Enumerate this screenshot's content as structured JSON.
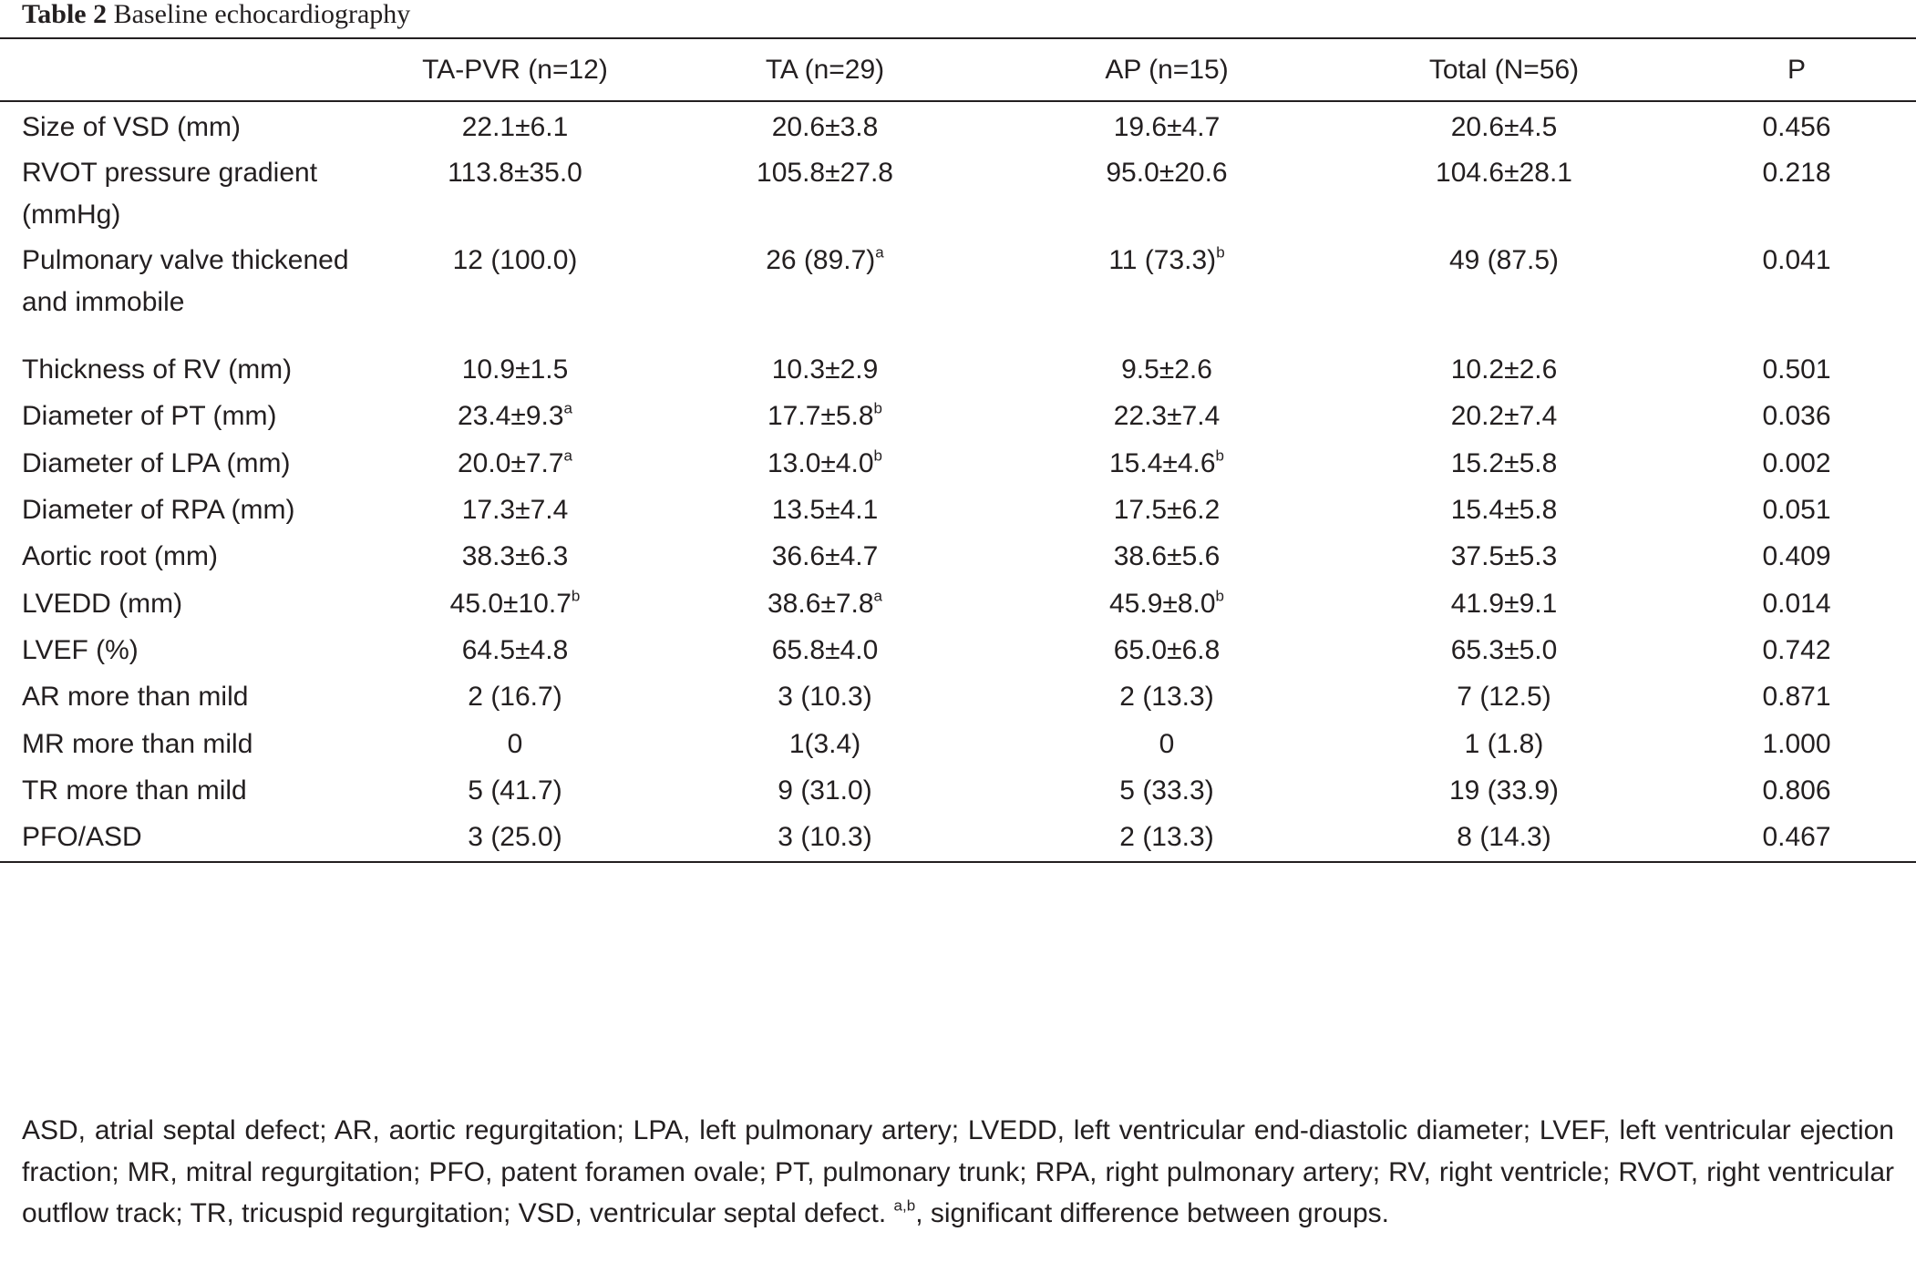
{
  "caption": {
    "label": "Table 2",
    "title": "Baseline echocardiography"
  },
  "columns": [
    "",
    "TA-PVR (n=12)",
    "TA (n=29)",
    "AP (n=15)",
    "Total (N=56)",
    "P"
  ],
  "rows": [
    {
      "label": "Size of VSD (mm)",
      "cells": [
        {
          "v": "22.1±6.1",
          "s": ""
        },
        {
          "v": "20.6±3.8",
          "s": ""
        },
        {
          "v": "19.6±4.7",
          "s": ""
        },
        {
          "v": "20.6±4.5",
          "s": ""
        },
        {
          "v": "0.456",
          "s": ""
        }
      ]
    },
    {
      "label": "RVOT pressure gradient (mmHg)",
      "cells": [
        {
          "v": "113.8±35.0",
          "s": ""
        },
        {
          "v": "105.8±27.8",
          "s": ""
        },
        {
          "v": "95.0±20.6",
          "s": ""
        },
        {
          "v": "104.6±28.1",
          "s": ""
        },
        {
          "v": "0.218",
          "s": ""
        }
      ]
    },
    {
      "label": "Pulmonary valve thickened and immobile",
      "cells": [
        {
          "v": "12 (100.0)",
          "s": ""
        },
        {
          "v": "26 (89.7)",
          "s": "a"
        },
        {
          "v": "11 (73.3)",
          "s": "b"
        },
        {
          "v": "49 (87.5)",
          "s": ""
        },
        {
          "v": "0.041",
          "s": ""
        }
      ]
    },
    {
      "label": "Thickness of RV (mm)",
      "cells": [
        {
          "v": "10.9±1.5",
          "s": ""
        },
        {
          "v": "10.3±2.9",
          "s": ""
        },
        {
          "v": "9.5±2.6",
          "s": ""
        },
        {
          "v": "10.2±2.6",
          "s": ""
        },
        {
          "v": "0.501",
          "s": ""
        }
      ]
    },
    {
      "label": "Diameter of PT (mm)",
      "cells": [
        {
          "v": "23.4±9.3",
          "s": "a"
        },
        {
          "v": "17.7±5.8",
          "s": "b"
        },
        {
          "v": "22.3±7.4",
          "s": ""
        },
        {
          "v": "20.2±7.4",
          "s": ""
        },
        {
          "v": "0.036",
          "s": ""
        }
      ]
    },
    {
      "label": "Diameter of LPA (mm)",
      "cells": [
        {
          "v": "20.0±7.7",
          "s": "a"
        },
        {
          "v": "13.0±4.0",
          "s": "b"
        },
        {
          "v": "15.4±4.6",
          "s": "b"
        },
        {
          "v": "15.2±5.8",
          "s": ""
        },
        {
          "v": "0.002",
          "s": ""
        }
      ]
    },
    {
      "label": "Diameter of RPA (mm)",
      "cells": [
        {
          "v": "17.3±7.4",
          "s": ""
        },
        {
          "v": "13.5±4.1",
          "s": ""
        },
        {
          "v": "17.5±6.2",
          "s": ""
        },
        {
          "v": "15.4±5.8",
          "s": ""
        },
        {
          "v": "0.051",
          "s": ""
        }
      ]
    },
    {
      "label": "Aortic root (mm)",
      "cells": [
        {
          "v": "38.3±6.3",
          "s": ""
        },
        {
          "v": "36.6±4.7",
          "s": ""
        },
        {
          "v": "38.6±5.6",
          "s": ""
        },
        {
          "v": "37.5±5.3",
          "s": ""
        },
        {
          "v": "0.409",
          "s": ""
        }
      ]
    },
    {
      "label": "LVEDD (mm)",
      "cells": [
        {
          "v": "45.0±10.7",
          "s": "b"
        },
        {
          "v": "38.6±7.8",
          "s": "a"
        },
        {
          "v": "45.9±8.0",
          "s": "b"
        },
        {
          "v": "41.9±9.1",
          "s": ""
        },
        {
          "v": "0.014",
          "s": ""
        }
      ]
    },
    {
      "label": "LVEF (%)",
      "cells": [
        {
          "v": "64.5±4.8",
          "s": ""
        },
        {
          "v": "65.8±4.0",
          "s": ""
        },
        {
          "v": "65.0±6.8",
          "s": ""
        },
        {
          "v": "65.3±5.0",
          "s": ""
        },
        {
          "v": "0.742",
          "s": ""
        }
      ]
    },
    {
      "label": "AR more than mild",
      "cells": [
        {
          "v": "2 (16.7)",
          "s": ""
        },
        {
          "v": "3 (10.3)",
          "s": ""
        },
        {
          "v": "2 (13.3)",
          "s": ""
        },
        {
          "v": "7 (12.5)",
          "s": ""
        },
        {
          "v": "0.871",
          "s": ""
        }
      ]
    },
    {
      "label": "MR more than mild",
      "cells": [
        {
          "v": "0",
          "s": ""
        },
        {
          "v": "1(3.4)",
          "s": ""
        },
        {
          "v": "0",
          "s": ""
        },
        {
          "v": "1 (1.8)",
          "s": ""
        },
        {
          "v": "1.000",
          "s": ""
        }
      ]
    },
    {
      "label": "TR more than mild",
      "cells": [
        {
          "v": "5 (41.7)",
          "s": ""
        },
        {
          "v": "9 (31.0)",
          "s": ""
        },
        {
          "v": "5 (33.3)",
          "s": ""
        },
        {
          "v": "19 (33.9)",
          "s": ""
        },
        {
          "v": "0.806",
          "s": ""
        }
      ]
    },
    {
      "label": "PFO/ASD",
      "cells": [
        {
          "v": "3 (25.0)",
          "s": ""
        },
        {
          "v": "3 (10.3)",
          "s": ""
        },
        {
          "v": "2 (13.3)",
          "s": ""
        },
        {
          "v": "8 (14.3)",
          "s": ""
        },
        {
          "v": "0.467",
          "s": ""
        }
      ]
    }
  ],
  "footnote": {
    "text": "ASD, atrial septal defect; AR, aortic regurgitation; LPA, left pulmonary artery; LVEDD, left ventricular end-diastolic diameter; LVEF, left ventricular ejection fraction; MR, mitral regurgitation; PFO, patent foramen ovale; PT, pulmonary trunk; RPA, right pulmonary artery; RV, right ventricle; RVOT, right ventricular outflow track; TR, tricuspid regurgitation; VSD, ventricular septal defect.",
    "sup": "a,b",
    "text_after": ", significant difference between groups."
  }
}
